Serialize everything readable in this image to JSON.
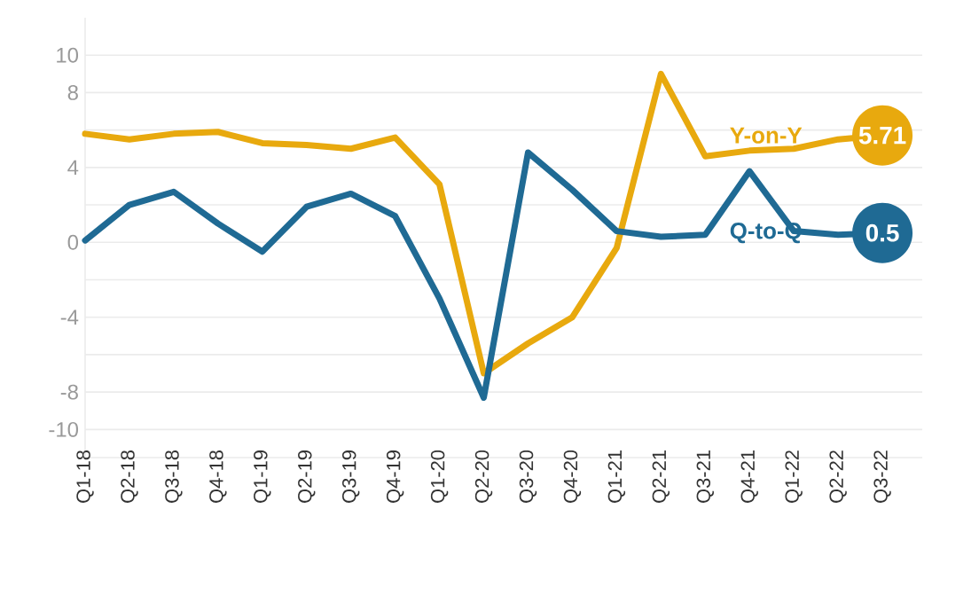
{
  "chart_data": {
    "type": "line",
    "categories": [
      "Q1-18",
      "Q2-18",
      "Q3-18",
      "Q4-18",
      "Q1-19",
      "Q2-19",
      "Q3-19",
      "Q4-19",
      "Q1-20",
      "Q2-20",
      "Q3-20",
      "Q4-20",
      "Q1-21",
      "Q2-21",
      "Q3-21",
      "Q4-21",
      "Q1-22",
      "Q2-22",
      "Q3-22"
    ],
    "series": [
      {
        "name": "Y-on-Y",
        "color": "#e8a90e",
        "values": [
          5.8,
          5.5,
          5.8,
          5.9,
          5.3,
          5.2,
          5.0,
          5.6,
          3.1,
          -7.0,
          -5.4,
          -4.0,
          -0.3,
          9.0,
          4.6,
          4.9,
          5.0,
          5.5,
          5.71
        ],
        "value_labels": [
          null,
          null,
          null,
          null,
          null,
          null,
          null,
          null,
          null,
          null,
          null,
          null,
          null,
          null,
          null,
          null,
          null,
          null,
          "5.71"
        ]
      },
      {
        "name": "Q-to-Q",
        "color": "#1f6a94",
        "values": [
          0.1,
          2.0,
          2.7,
          1.0,
          -0.5,
          1.9,
          2.6,
          1.4,
          -3.0,
          -8.3,
          4.8,
          2.8,
          0.6,
          0.3,
          0.4,
          3.8,
          0.6,
          0.4,
          0.5
        ],
        "value_labels": [
          null,
          null,
          null,
          null,
          null,
          null,
          null,
          null,
          null,
          null,
          null,
          null,
          null,
          null,
          null,
          null,
          null,
          null,
          "0.5"
        ]
      }
    ],
    "ylim": [
      -11.5,
      12
    ],
    "yticks": [
      10,
      8,
      {
        "value": 6,
        "label": null
      },
      4,
      {
        "value": 2,
        "label": null
      },
      0,
      {
        "value": -2,
        "label": null
      },
      -4,
      {
        "value": -6,
        "label": null
      },
      -8,
      -10
    ],
    "grid": "y",
    "line_style": "solid"
  }
}
